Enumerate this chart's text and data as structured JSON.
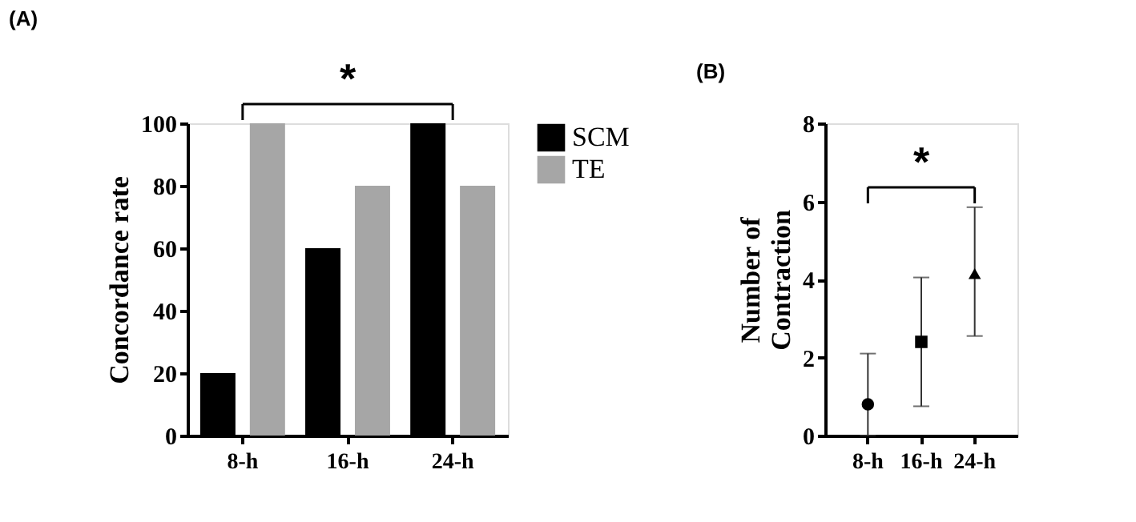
{
  "chart_data": [
    {
      "type": "bar",
      "title": "(A)",
      "ylabel": "Concordance rate",
      "categories": [
        "8-h",
        "16-h",
        "24-h"
      ],
      "series": [
        {
          "name": "SCM",
          "color": "#000000",
          "values": [
            20,
            60,
            100
          ]
        },
        {
          "name": "TE",
          "color": "#a6a6a6",
          "values": [
            100,
            80,
            80
          ]
        }
      ],
      "ylim": [
        0,
        100
      ],
      "yticks": [
        0,
        20,
        40,
        60,
        80,
        100
      ],
      "grid": false,
      "legend": "right",
      "annotations": [
        "*"
      ]
    },
    {
      "type": "scatter",
      "title": "(B)",
      "ylabel": "Number of\nContraction",
      "categories": [
        "8-h",
        "16-h",
        "24-h"
      ],
      "series": [
        {
          "color": "#000000",
          "marker": "circle",
          "values": [
            0.8,
            null,
            null
          ],
          "errors": [
            [
              0,
              2.1
            ],
            null,
            null
          ]
        },
        {
          "color": "#000000",
          "marker": "square",
          "values": [
            null,
            2.4,
            null
          ],
          "errors": [
            null,
            [
              0.75,
              4.05
            ],
            null
          ]
        },
        {
          "color": "#000000",
          "marker": "triangle",
          "values": [
            null,
            null,
            4.15
          ],
          "errors": [
            null,
            null,
            [
              2.55,
              5.85
            ]
          ]
        }
      ],
      "ylim": [
        0,
        8
      ],
      "yticks": [
        0,
        2,
        4,
        6,
        8
      ],
      "grid": false,
      "legend": false,
      "annotations": [
        "*"
      ]
    }
  ]
}
